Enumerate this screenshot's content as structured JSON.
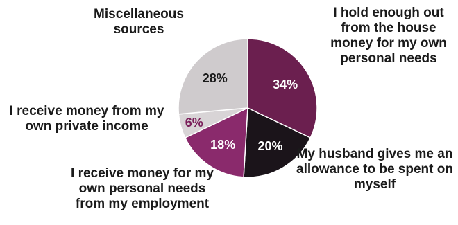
{
  "chart_data": {
    "type": "pie",
    "slices": [
      {
        "label": "I hold enough out from the house money for my own personal needs",
        "value": 34,
        "value_label": "34%",
        "color": "#6b1f4f",
        "value_color": "#ffffff"
      },
      {
        "label": "My husband gives me an allowance to be spent on myself",
        "value": 20,
        "value_label": "20%",
        "color": "#1b141a",
        "value_color": "#ffffff"
      },
      {
        "label": "I receive money for my own personal needs from my employment",
        "value": 18,
        "value_label": "18%",
        "color": "#8a2a6c",
        "value_color": "#ffffff"
      },
      {
        "label": "I receive money from my own private income",
        "value": 6,
        "value_label": "6%",
        "color": "#d8d4d6",
        "value_color": "#7a1f5a"
      },
      {
        "label": "Miscellaneous sources",
        "value": 28,
        "value_label": "28%",
        "color": "#cfcbcd",
        "value_color": "#1a1a1a"
      }
    ]
  }
}
